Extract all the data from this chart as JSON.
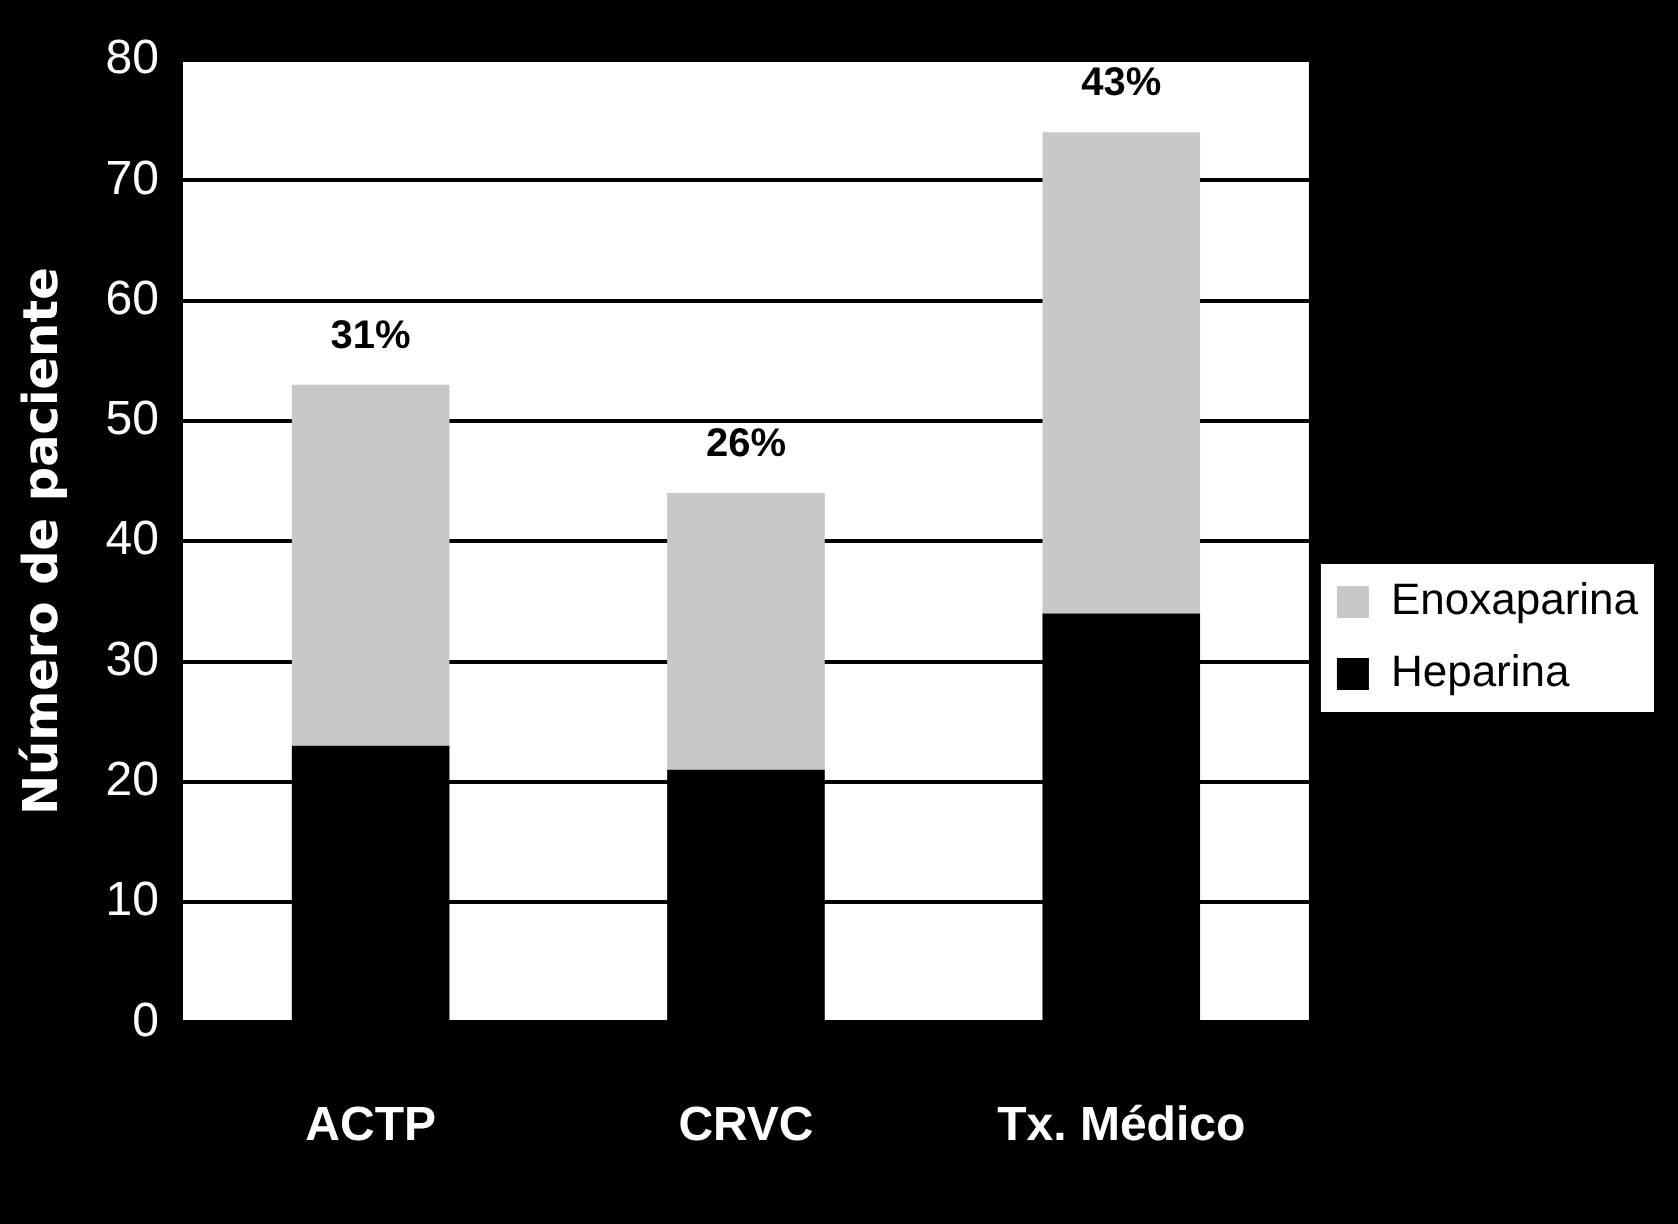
{
  "chart_data": {
    "type": "bar",
    "stacked": true,
    "ylabel": "Número de paciente",
    "categories": [
      "ACTP",
      "CRVC",
      "Tx. Médico"
    ],
    "series": [
      {
        "name": "Heparina",
        "color": "#000000",
        "values": [
          23,
          21,
          34
        ]
      },
      {
        "name": "Enoxaparina",
        "color": "#c8c8c8",
        "values": [
          30,
          23,
          40
        ]
      }
    ],
    "annotations": [
      {
        "text": "31%",
        "x": "ACTP",
        "y": 53
      },
      {
        "text": "26%",
        "x": "CRVC",
        "y": 44
      },
      {
        "text": "43%",
        "x": "Tx. Médico",
        "y": 74
      }
    ],
    "ylim": [
      0,
      80
    ],
    "yticks": [
      0,
      10,
      20,
      30,
      40,
      50,
      60,
      70,
      80
    ],
    "grid": "y",
    "legend": "right"
  }
}
